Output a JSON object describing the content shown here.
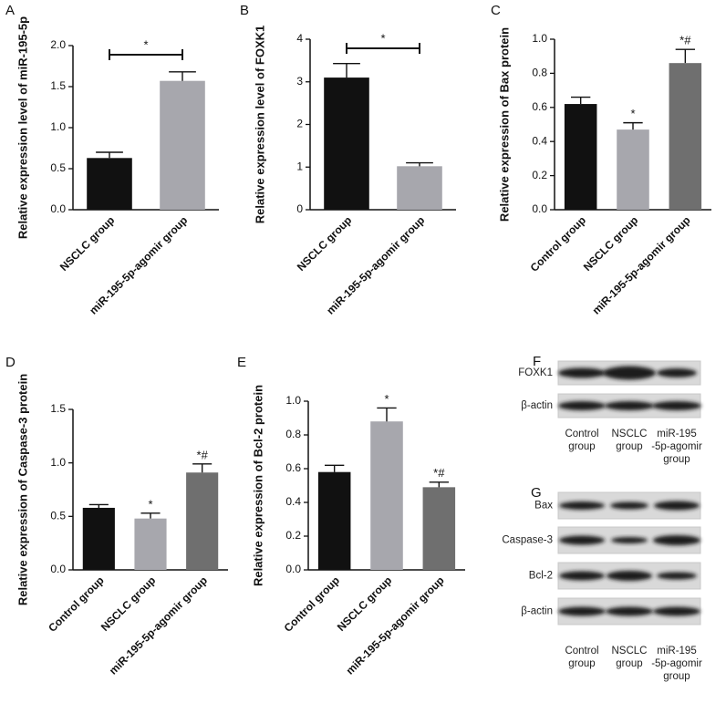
{
  "chart_data": [
    {
      "type": "bar",
      "panel": "A",
      "ylabel": "Relative expression level of miR-195-5p",
      "categories": [
        "NSCLC group",
        "miR-195-5p-agomir group"
      ],
      "values": [
        0.63,
        1.57
      ],
      "errors": [
        0.07,
        0.11
      ],
      "colors": [
        "#111111",
        "#a7a7ad"
      ],
      "bracket": "*",
      "ylim": [
        0,
        2.0
      ],
      "yticks": [
        {
          "value": 0,
          "label": "0.0"
        },
        0.5,
        {
          "value": 1.0,
          "label": "1.0"
        },
        1.5,
        {
          "value": 2.0,
          "label": "2.0"
        }
      ]
    },
    {
      "type": "bar",
      "panel": "B",
      "ylabel": "Relative expression level of FOXK1",
      "categories": [
        "NSCLC group",
        "miR-195-5p-agomir group"
      ],
      "values": [
        3.1,
        1.02
      ],
      "errors": [
        0.33,
        0.08
      ],
      "colors": [
        "#111111",
        "#a7a7ad"
      ],
      "bracket": "*",
      "ylim": [
        0,
        4
      ],
      "yticks": [
        0,
        1,
        2,
        3,
        4
      ]
    },
    {
      "type": "bar",
      "panel": "C",
      "ylabel": "Relative expression of Bax protein",
      "categories": [
        "Control group",
        "NSCLC group",
        "miR-195-5p-agomir group"
      ],
      "values": [
        0.62,
        0.47,
        0.86
      ],
      "errors": [
        0.04,
        0.04,
        0.08
      ],
      "colors": [
        "#111111",
        "#a7a7ad",
        "#6f6f6f"
      ],
      "bar_labels": [
        null,
        "*",
        "*#"
      ],
      "ylim": [
        0,
        1.0
      ],
      "yticks": [
        {
          "value": 0,
          "label": "0.0"
        },
        0.2,
        0.4,
        0.6,
        0.8,
        {
          "value": 1.0,
          "label": "1.0"
        }
      ]
    },
    {
      "type": "bar",
      "panel": "D",
      "ylabel": "Relative expression of Caspase-3 protein",
      "categories": [
        "Control group",
        "NSCLC group",
        "miR-195-5p-agomir group"
      ],
      "values": [
        0.58,
        0.48,
        0.91
      ],
      "errors": [
        0.03,
        0.05,
        0.08
      ],
      "colors": [
        "#111111",
        "#a7a7ad",
        "#6f6f6f"
      ],
      "bar_labels": [
        null,
        "*",
        "*#"
      ],
      "ylim": [
        0,
        1.5
      ],
      "yticks": [
        {
          "value": 0,
          "label": "0.0"
        },
        0.5,
        {
          "value": 1.0,
          "label": "1.0"
        },
        1.5
      ]
    },
    {
      "type": "bar",
      "panel": "E",
      "ylabel": "Relative expression of Bcl-2 protein",
      "categories": [
        "Control group",
        "NSCLC group",
        "miR-195-5p-agomir group"
      ],
      "values": [
        0.58,
        0.88,
        0.49
      ],
      "errors": [
        0.04,
        0.08,
        0.03
      ],
      "colors": [
        "#111111",
        "#a7a7ad",
        "#6f6f6f"
      ],
      "bar_labels": [
        null,
        "*",
        "*#"
      ],
      "ylim": [
        0,
        1.0
      ],
      "yticks": [
        {
          "value": 0,
          "label": "0.0"
        },
        0.2,
        0.4,
        0.6,
        0.8,
        {
          "value": 1.0,
          "label": "1.0"
        }
      ]
    }
  ],
  "blots": [
    {
      "panel": "F",
      "rows": [
        "FOXK1",
        "β-actin"
      ],
      "columns": [
        [
          "Control",
          "group"
        ],
        [
          "NSCLC",
          "group"
        ],
        [
          "miR-195",
          "-5p-agomir",
          "group"
        ]
      ]
    },
    {
      "panel": "G",
      "rows": [
        "Bax",
        "Caspase-3",
        "Bcl-2",
        "β-actin"
      ],
      "columns": [
        [
          "Control",
          "group"
        ],
        [
          "NSCLC",
          "group"
        ],
        [
          "miR-195",
          "-5p-agomir",
          "group"
        ]
      ]
    }
  ]
}
